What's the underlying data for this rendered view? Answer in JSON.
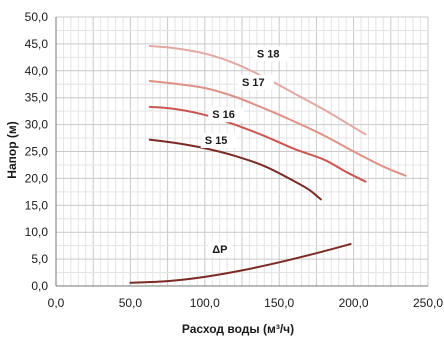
{
  "chart_data": {
    "type": "line",
    "xlabel": "Расход воды (м³/ч)",
    "ylabel": "Напор (м)",
    "xlim": [
      0,
      250
    ],
    "ylim": [
      0,
      50
    ],
    "x_ticks": [
      "0,0",
      "50,0",
      "100,0",
      "150,0",
      "200,0",
      "250,0"
    ],
    "y_ticks": [
      "0,0",
      "5,0",
      "10,0",
      "15,0",
      "20,0",
      "25,0",
      "30,0",
      "35,0",
      "40,0",
      "45,0",
      "50,0"
    ],
    "grid": true,
    "series": [
      {
        "name": "S 18",
        "color": "#e3a8a1",
        "label_at": [
          135,
          42.5
        ],
        "points": [
          [
            63,
            44.6
          ],
          [
            80,
            44.2
          ],
          [
            100,
            43.2
          ],
          [
            120,
            41.4
          ],
          [
            140,
            38.8
          ],
          [
            160,
            35.8
          ],
          [
            180,
            32.8
          ],
          [
            200,
            29.5
          ],
          [
            208,
            28.2
          ]
        ]
      },
      {
        "name": "S 17",
        "color": "#df9186",
        "label_at": [
          125,
          37.2
        ],
        "points": [
          [
            63,
            38.1
          ],
          [
            80,
            37.6
          ],
          [
            100,
            36.8
          ],
          [
            120,
            35.2
          ],
          [
            140,
            33.0
          ],
          [
            160,
            30.6
          ],
          [
            180,
            28.0
          ],
          [
            200,
            25.0
          ],
          [
            220,
            22.2
          ],
          [
            235,
            20.5
          ]
        ]
      },
      {
        "name": "S 16",
        "color": "#cc5551",
        "label_at": [
          105,
          31.2
        ],
        "points": [
          [
            63,
            33.3
          ],
          [
            80,
            32.9
          ],
          [
            100,
            31.8
          ],
          [
            120,
            30.0
          ],
          [
            140,
            27.9
          ],
          [
            160,
            25.5
          ],
          [
            180,
            23.5
          ],
          [
            195,
            21.2
          ],
          [
            208,
            19.4
          ]
        ]
      },
      {
        "name": "S 15",
        "color": "#7c2a24",
        "label_at": [
          100,
          26.4
        ],
        "points": [
          [
            63,
            27.2
          ],
          [
            80,
            26.6
          ],
          [
            100,
            25.6
          ],
          [
            120,
            24.2
          ],
          [
            140,
            22.3
          ],
          [
            160,
            19.5
          ],
          [
            170,
            17.9
          ],
          [
            178,
            16.1
          ]
        ]
      },
      {
        "name": "ΔP",
        "color": "#7c2a24",
        "label_at": [
          105,
          6.1
        ],
        "points": [
          [
            50,
            0.6
          ],
          [
            75,
            0.9
          ],
          [
            100,
            1.7
          ],
          [
            125,
            2.9
          ],
          [
            150,
            4.4
          ],
          [
            175,
            6.1
          ],
          [
            198,
            7.8
          ]
        ]
      }
    ]
  }
}
